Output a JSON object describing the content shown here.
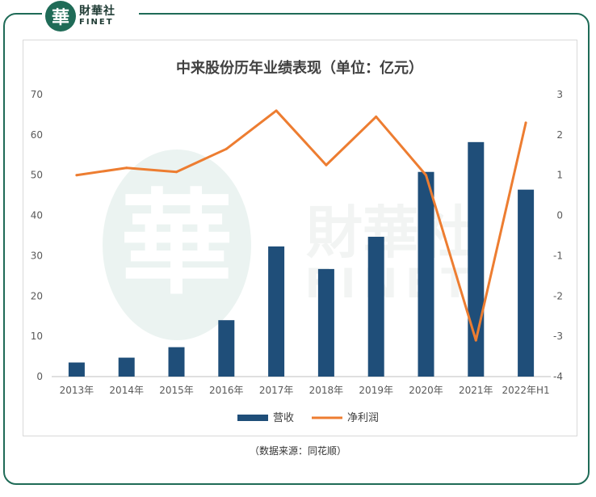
{
  "brand": {
    "seal_char": "華",
    "name_cn": "財華社",
    "name_en": "FINET"
  },
  "watermark": {
    "seal_char": "華",
    "name_cn": "財華社",
    "name_en": "FINET"
  },
  "colors": {
    "frame": "#1f6b57",
    "bar": "#1f4e79",
    "line": "#ed7d31",
    "watermark": "#dcebe6"
  },
  "source_note": "（数据来源：同花顺）",
  "chart_data": {
    "type": "bar",
    "title": "中来股份历年业绩表现（单位：亿元）",
    "categories": [
      "2013年",
      "2014年",
      "2015年",
      "2016年",
      "2017年",
      "2018年",
      "2019年",
      "2020年",
      "2021年",
      "2022年H1"
    ],
    "series": [
      {
        "name": "营收",
        "type": "bar",
        "axis": "left",
        "values": [
          3.5,
          4.7,
          7.3,
          14.0,
          32.3,
          26.7,
          34.7,
          50.8,
          58.2,
          46.4
        ]
      },
      {
        "name": "净利润",
        "type": "line",
        "axis": "right",
        "values": [
          1.0,
          1.18,
          1.08,
          1.65,
          2.6,
          1.25,
          2.45,
          1.0,
          -3.1,
          2.3
        ]
      }
    ],
    "y_left": {
      "min": 0,
      "max": 70,
      "step": 10,
      "ticks": [
        "0",
        "10",
        "20",
        "30",
        "40",
        "50",
        "60",
        "70"
      ]
    },
    "y_right": {
      "min": -4,
      "max": 3,
      "step": 1,
      "ticks": [
        "-4",
        "-3",
        "-2",
        "-1",
        "0",
        "1",
        "2",
        "3"
      ]
    },
    "grid": false,
    "legend_position": "bottom"
  }
}
